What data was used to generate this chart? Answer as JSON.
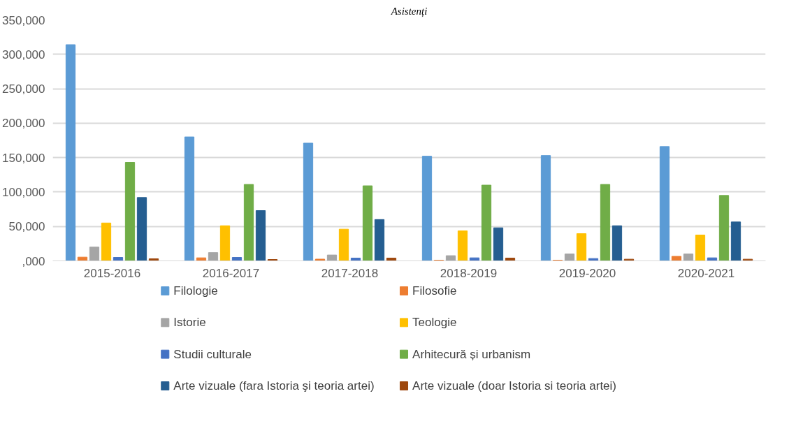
{
  "chart_data": {
    "type": "bar",
    "title": "Asistenți",
    "categories": [
      "2015-2016",
      "2016-2017",
      "2017-2018",
      "2018-2019",
      "2019-2020",
      "2020-2021"
    ],
    "series": [
      {
        "name": "Filologie",
        "color": "#5b9bd5",
        "values": [
          314000,
          180000,
          171000,
          152000,
          153000,
          166000
        ]
      },
      {
        "name": "Filosofie",
        "color": "#ed7d31",
        "values": [
          5400,
          4400,
          2500,
          1000,
          1000,
          6500
        ]
      },
      {
        "name": "Istorie",
        "color": "#a5a5a5",
        "values": [
          20000,
          12000,
          8500,
          7500,
          10000,
          10000
        ]
      },
      {
        "name": "Teologie",
        "color": "#ffc000",
        "values": [
          55000,
          51000,
          46000,
          43500,
          39500,
          37500
        ]
      },
      {
        "name": "Studii culturale",
        "color": "#4472c4",
        "values": [
          5000,
          5000,
          4000,
          4400,
          3400,
          4400
        ]
      },
      {
        "name": "Arhitecură și urbanism",
        "color": "#70ad47",
        "values": [
          143000,
          111000,
          109000,
          110000,
          111000,
          95000
        ]
      },
      {
        "name": "Arte vizuale (fara Istoria şi teoria artei)",
        "color": "#255e91",
        "values": [
          92000,
          73000,
          60000,
          48000,
          51000,
          56500
        ]
      },
      {
        "name": "Arte vizuale (doar Istoria si teoria artei)",
        "color": "#9e480e",
        "values": [
          3000,
          2000,
          4000,
          4000,
          2400,
          2400
        ]
      }
    ],
    "ylim": [
      0,
      350000
    ],
    "yticks": [
      {
        "value": 0,
        "label": ",000"
      },
      {
        "value": 50000,
        "label": "50,000"
      },
      {
        "value": 100000,
        "label": "100,000"
      },
      {
        "value": 150000,
        "label": "150,000"
      },
      {
        "value": 200000,
        "label": "200,000"
      },
      {
        "value": 250000,
        "label": "250,000"
      },
      {
        "value": 300000,
        "label": "300,000"
      },
      {
        "value": 350000,
        "label": "350,000"
      }
    ],
    "grid": "y",
    "legend": "bottom"
  }
}
